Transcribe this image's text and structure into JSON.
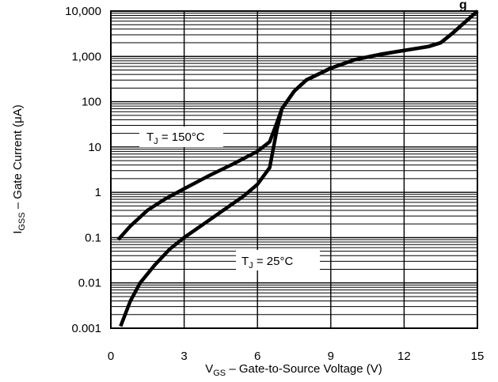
{
  "chart_data": {
    "type": "line",
    "title": "",
    "xlabel": {
      "main": "V",
      "sub": "GS",
      "rest": " – Gate-to-Source Voltage (V)"
    },
    "ylabel": {
      "main": "I",
      "sub": "GSS",
      "rest": " – Gate Current (μA)"
    },
    "xlim": [
      0,
      15
    ],
    "ylim": [
      0.001,
      10000
    ],
    "yscale": "log",
    "grid": true,
    "x_ticks": [
      {
        "value": 0,
        "label": "0"
      },
      {
        "value": 3,
        "label": "3"
      },
      {
        "value": 6,
        "label": "6"
      },
      {
        "value": 9,
        "label": "9"
      },
      {
        "value": 12,
        "label": "12"
      },
      {
        "value": 15,
        "label": "15"
      }
    ],
    "y_ticks": [
      {
        "value": 0.001,
        "label": "0.001"
      },
      {
        "value": 0.01,
        "label": "0.01"
      },
      {
        "value": 0.1,
        "label": "0.1"
      },
      {
        "value": 1,
        "label": "1"
      },
      {
        "value": 10,
        "label": "10"
      },
      {
        "value": 100,
        "label": "100"
      },
      {
        "value": 1000,
        "label": "1,000"
      },
      {
        "value": 10000,
        "label": "10,000"
      }
    ],
    "series": [
      {
        "label_parts": {
          "main": "T",
          "sub": "J",
          "rest": " = 150°C"
        },
        "x": [
          0.3,
          0.8,
          1.5,
          2.2,
          3.0,
          4.0,
          5.0,
          6.0,
          6.5,
          6.8,
          7.0,
          7.5,
          8.0,
          9.0,
          10.0,
          11.0,
          12.0,
          13.0,
          13.5,
          14.0,
          15.0
        ],
        "y": [
          0.09,
          0.18,
          0.4,
          0.7,
          1.2,
          2.3,
          4.2,
          8.0,
          13.0,
          35.0,
          70.0,
          170.0,
          300.0,
          550.0,
          850.0,
          1100.0,
          1350.0,
          1650.0,
          2000.0,
          3300.0,
          10000.0
        ]
      },
      {
        "label_parts": {
          "main": "T",
          "sub": "J",
          "rest": " = 25°C"
        },
        "x": [
          0.4,
          0.8,
          1.2,
          1.8,
          2.4,
          3.0,
          3.8,
          4.6,
          5.4,
          6.0,
          6.5,
          6.8,
          7.0,
          7.5,
          8.0,
          9.0,
          10.0,
          11.0,
          12.0,
          13.0,
          13.5,
          14.0,
          15.0
        ],
        "y": [
          0.0011,
          0.004,
          0.01,
          0.025,
          0.055,
          0.1,
          0.2,
          0.4,
          0.8,
          1.5,
          3.5,
          25.0,
          70.0,
          170.0,
          300.0,
          550.0,
          850.0,
          1100.0,
          1350.0,
          1650.0,
          2000.0,
          3300.0,
          10000.0
        ]
      }
    ],
    "header_fragment": "g"
  }
}
